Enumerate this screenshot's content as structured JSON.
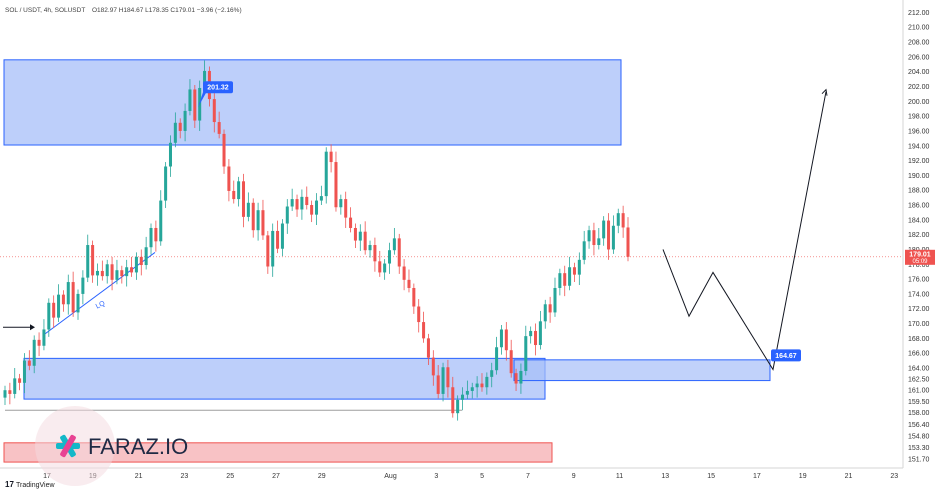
{
  "header": {
    "symbol": "SOL / USDT, 4h, SOLUSDT",
    "ohlc": "O182.97 H184.67 L178.35 C179.01 −3.96 (−2.16%)"
  },
  "branding": {
    "tradingview": "TradingView",
    "faraz": "FARAZ.IO"
  },
  "colors": {
    "up": "#26a69a",
    "down": "#ef5350",
    "zone_fill": "#a7bff8",
    "zone_stroke": "#2962ff",
    "price_tag": "#ef5350",
    "label_bg": "#2962ff"
  },
  "chart_data": {
    "type": "candlestick",
    "ylim": [
      150.5,
      213.0
    ],
    "y_ticks": [
      "212.00",
      "210.00",
      "208.00",
      "206.00",
      "204.00",
      "202.00",
      "200.00",
      "198.00",
      "196.00",
      "194.00",
      "192.00",
      "190.00",
      "188.00",
      "186.00",
      "184.00",
      "182.00",
      "180.00",
      "178.00",
      "176.00",
      "174.00",
      "172.00",
      "170.00",
      "168.00",
      "166.00",
      "164.00",
      "162.50",
      "161.00",
      "159.50",
      "158.00",
      "156.40",
      "154.80",
      "153.30",
      "151.70"
    ],
    "x_ticks": [
      "17",
      "19",
      "21",
      "23",
      "25",
      "27",
      "29",
      "Aug",
      "3",
      "5",
      "7",
      "9",
      "11",
      "13",
      "15",
      "17",
      "19",
      "21",
      "23"
    ],
    "current_price": "179.01",
    "countdown": "05:09",
    "annotations": {
      "high_label": "201.32",
      "target_label": "164.67",
      "trendline_text": "LQ"
    },
    "zones": [
      {
        "name": "supply-zone",
        "low": 194.1,
        "high": 205.6
      },
      {
        "name": "demand-zone",
        "low": 159.8,
        "high": 165.3
      },
      {
        "name": "small-demand-zone",
        "low": 162.3,
        "high": 165.1
      },
      {
        "name": "red-bottom-zone",
        "low": 151.3,
        "high": 153.9
      }
    ],
    "projection": [
      {
        "x": "Aug 12",
        "y": 180.0
      },
      {
        "x": "Aug 13",
        "y": 171.0
      },
      {
        "x": "Aug 14",
        "y": 176.9
      },
      {
        "x": "Aug 17",
        "y": 163.8
      },
      {
        "x": "Aug 19",
        "y": 201.3
      }
    ],
    "candles": [
      {
        "o": 160.0,
        "c": 161.0
      },
      {
        "o": 161.0,
        "c": 160.5
      },
      {
        "o": 160.5,
        "c": 162.6
      },
      {
        "o": 162.6,
        "c": 162.0
      },
      {
        "o": 162.0,
        "c": 165.0
      },
      {
        "o": 165.0,
        "c": 164.3
      },
      {
        "o": 164.3,
        "c": 167.8
      },
      {
        "o": 167.8,
        "c": 167.0
      },
      {
        "o": 167.0,
        "c": 169.2
      },
      {
        "o": 169.2,
        "c": 172.8
      },
      {
        "o": 172.8,
        "c": 170.8
      },
      {
        "o": 170.8,
        "c": 173.9
      },
      {
        "o": 173.9,
        "c": 172.6
      },
      {
        "o": 172.6,
        "c": 175.6
      },
      {
        "o": 175.6,
        "c": 171.5
      },
      {
        "o": 171.5,
        "c": 174.0
      },
      {
        "o": 174.0,
        "c": 176.2
      },
      {
        "o": 176.2,
        "c": 180.6
      },
      {
        "o": 180.6,
        "c": 176.5
      },
      {
        "o": 176.5,
        "c": 177.1
      },
      {
        "o": 177.1,
        "c": 176.4
      },
      {
        "o": 176.4,
        "c": 178.0
      },
      {
        "o": 178.0,
        "c": 175.9
      },
      {
        "o": 175.9,
        "c": 177.2
      },
      {
        "o": 177.2,
        "c": 176.4
      },
      {
        "o": 176.4,
        "c": 177.6
      },
      {
        "o": 177.6,
        "c": 176.9
      },
      {
        "o": 176.9,
        "c": 179.0
      },
      {
        "o": 179.0,
        "c": 177.9
      },
      {
        "o": 177.9,
        "c": 180.3
      },
      {
        "o": 180.3,
        "c": 182.9
      },
      {
        "o": 182.9,
        "c": 181.1
      },
      {
        "o": 181.1,
        "c": 186.6
      },
      {
        "o": 186.6,
        "c": 191.2
      },
      {
        "o": 191.2,
        "c": 194.4
      },
      {
        "o": 194.4,
        "c": 197.1
      },
      {
        "o": 197.1,
        "c": 196.0
      },
      {
        "o": 196.0,
        "c": 198.7
      },
      {
        "o": 198.7,
        "c": 201.6
      },
      {
        "o": 201.6,
        "c": 197.4
      },
      {
        "o": 197.4,
        "c": 201.8
      },
      {
        "o": 201.8,
        "c": 204.1
      },
      {
        "o": 204.1,
        "c": 200.3
      },
      {
        "o": 200.3,
        "c": 197.2
      },
      {
        "o": 197.2,
        "c": 195.6
      },
      {
        "o": 195.6,
        "c": 191.2
      },
      {
        "o": 191.2,
        "c": 187.9
      },
      {
        "o": 187.9,
        "c": 186.8
      },
      {
        "o": 186.8,
        "c": 189.2
      },
      {
        "o": 189.2,
        "c": 184.4
      },
      {
        "o": 184.4,
        "c": 186.3
      },
      {
        "o": 186.3,
        "c": 182.6
      },
      {
        "o": 182.6,
        "c": 185.3
      },
      {
        "o": 185.3,
        "c": 181.9
      },
      {
        "o": 181.9,
        "c": 177.7
      },
      {
        "o": 177.7,
        "c": 182.5
      },
      {
        "o": 182.5,
        "c": 180.1
      },
      {
        "o": 180.1,
        "c": 183.5
      },
      {
        "o": 183.5,
        "c": 185.8
      },
      {
        "o": 185.8,
        "c": 186.8
      },
      {
        "o": 186.8,
        "c": 185.4
      },
      {
        "o": 185.4,
        "c": 187.1
      },
      {
        "o": 187.1,
        "c": 186.0
      },
      {
        "o": 186.0,
        "c": 184.7
      },
      {
        "o": 184.7,
        "c": 186.6
      },
      {
        "o": 186.6,
        "c": 187.2
      },
      {
        "o": 187.2,
        "c": 193.2
      },
      {
        "o": 193.2,
        "c": 191.8
      },
      {
        "o": 191.8,
        "c": 185.7
      },
      {
        "o": 185.7,
        "c": 186.8
      },
      {
        "o": 186.8,
        "c": 184.3
      },
      {
        "o": 184.3,
        "c": 182.9
      },
      {
        "o": 182.9,
        "c": 181.2
      },
      {
        "o": 181.2,
        "c": 182.4
      },
      {
        "o": 182.4,
        "c": 179.9
      },
      {
        "o": 179.9,
        "c": 180.6
      },
      {
        "o": 180.6,
        "c": 178.4
      },
      {
        "o": 178.4,
        "c": 176.9
      },
      {
        "o": 176.9,
        "c": 178.1
      },
      {
        "o": 178.1,
        "c": 179.9
      },
      {
        "o": 179.9,
        "c": 181.5
      },
      {
        "o": 181.5,
        "c": 177.7
      },
      {
        "o": 177.7,
        "c": 175.9
      },
      {
        "o": 175.9,
        "c": 174.8
      },
      {
        "o": 174.8,
        "c": 172.3
      },
      {
        "o": 172.3,
        "c": 170.2
      },
      {
        "o": 170.2,
        "c": 168.0
      },
      {
        "o": 168.0,
        "c": 165.4
      },
      {
        "o": 165.4,
        "c": 163.0
      },
      {
        "o": 163.0,
        "c": 160.5
      },
      {
        "o": 160.5,
        "c": 164.1
      },
      {
        "o": 164.1,
        "c": 161.4
      },
      {
        "o": 161.4,
        "c": 157.9
      },
      {
        "o": 157.9,
        "c": 159.7
      },
      {
        "o": 159.7,
        "c": 160.4
      },
      {
        "o": 160.4,
        "c": 160.9
      },
      {
        "o": 160.9,
        "c": 161.4
      },
      {
        "o": 161.4,
        "c": 161.9
      },
      {
        "o": 161.9,
        "c": 161.4
      },
      {
        "o": 161.4,
        "c": 162.8
      },
      {
        "o": 162.8,
        "c": 163.7
      },
      {
        "o": 163.7,
        "c": 166.8
      },
      {
        "o": 166.8,
        "c": 169.2
      },
      {
        "o": 169.2,
        "c": 166.4
      },
      {
        "o": 166.4,
        "c": 163.3
      },
      {
        "o": 163.3,
        "c": 161.9
      },
      {
        "o": 161.9,
        "c": 163.6
      },
      {
        "o": 163.6,
        "c": 168.3
      },
      {
        "o": 168.3,
        "c": 169.0
      },
      {
        "o": 169.0,
        "c": 167.1
      },
      {
        "o": 167.1,
        "c": 170.3
      },
      {
        "o": 170.3,
        "c": 172.6
      },
      {
        "o": 172.6,
        "c": 171.5
      },
      {
        "o": 171.5,
        "c": 174.8
      },
      {
        "o": 174.8,
        "c": 176.8
      },
      {
        "o": 176.8,
        "c": 175.1
      },
      {
        "o": 175.1,
        "c": 177.6
      },
      {
        "o": 177.6,
        "c": 176.6
      },
      {
        "o": 176.6,
        "c": 178.6
      },
      {
        "o": 178.6,
        "c": 181.1
      },
      {
        "o": 181.1,
        "c": 182.6
      },
      {
        "o": 182.6,
        "c": 180.6
      },
      {
        "o": 180.6,
        "c": 181.5
      },
      {
        "o": 181.5,
        "c": 183.9
      },
      {
        "o": 183.9,
        "c": 180.0
      },
      {
        "o": 180.0,
        "c": 183.2
      },
      {
        "o": 183.2,
        "c": 184.9
      },
      {
        "o": 184.9,
        "c": 182.97
      },
      {
        "o": 182.97,
        "c": 179.01
      }
    ]
  }
}
